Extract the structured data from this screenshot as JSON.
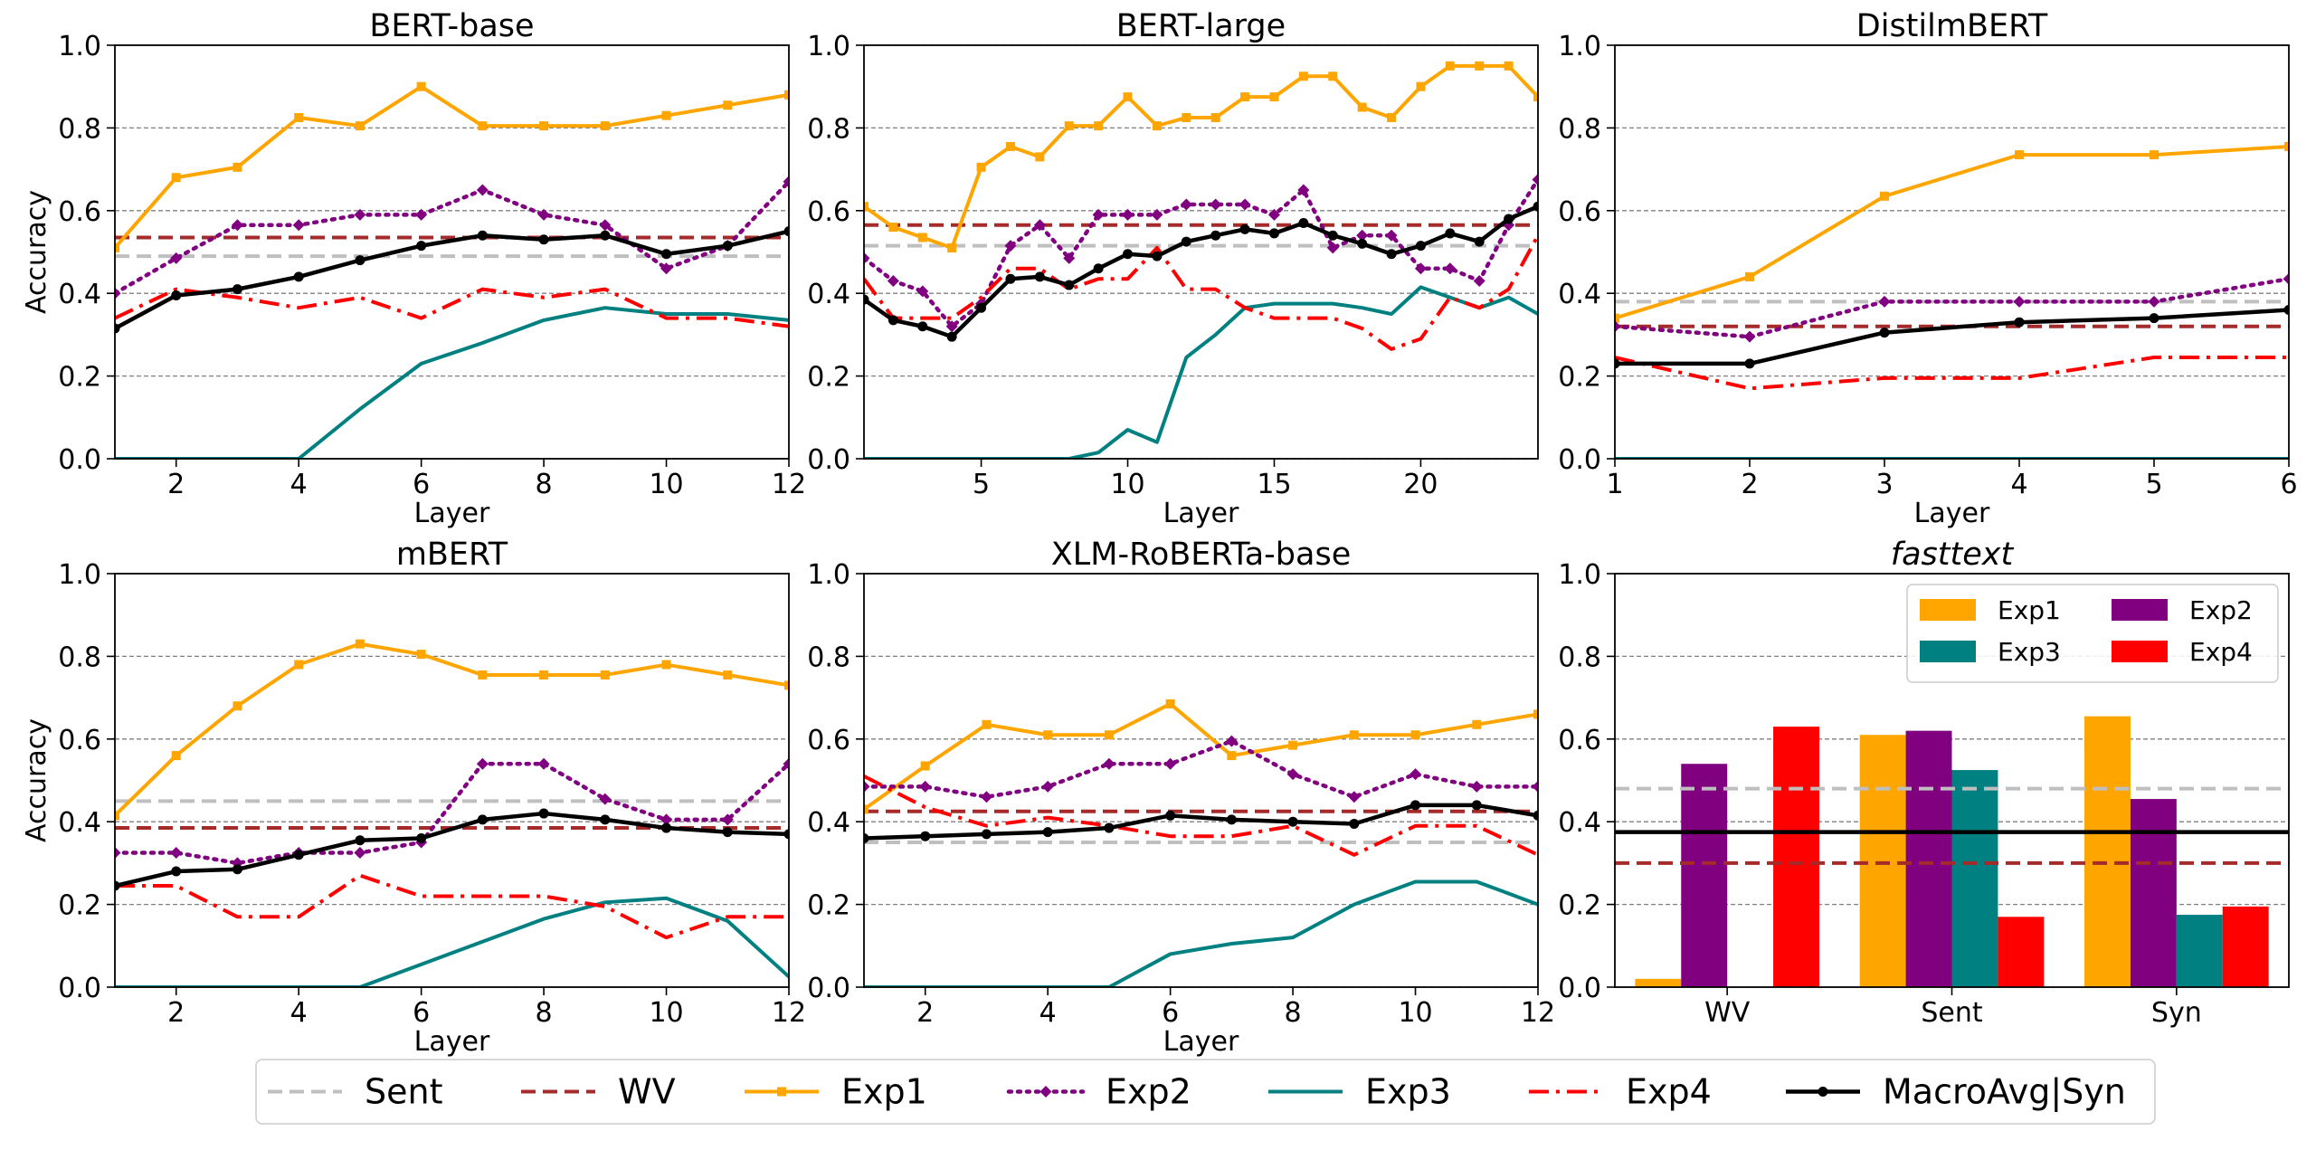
{
  "colors": {
    "Sent": "#bfbfbf",
    "WV": "#a52a2a",
    "Exp1": "#ffa500",
    "Exp2": "#800080",
    "Exp3": "#008080",
    "Exp4": "#ff0000",
    "MacroAvg|Syn": "#000000"
  },
  "axis_labels": {
    "x": "Layer",
    "y": "Accuracy"
  },
  "legend": {
    "entries": [
      {
        "key": "Sent",
        "label": "Sent"
      },
      {
        "key": "WV",
        "label": "WV"
      },
      {
        "key": "Exp1",
        "label": "Exp1"
      },
      {
        "key": "Exp2",
        "label": "Exp2"
      },
      {
        "key": "Exp3",
        "label": "Exp3"
      },
      {
        "key": "Exp4",
        "label": "Exp4"
      },
      {
        "key": "MacroAvg|Syn",
        "label": "MacroAvg|Syn"
      }
    ]
  },
  "chart_data": [
    {
      "type": "line",
      "title": "BERT-base",
      "xlabel": "Layer",
      "ylabel": "Accuracy",
      "xlim": [
        1,
        12
      ],
      "ylim": [
        0,
        1
      ],
      "xticks": [
        2,
        4,
        6,
        8,
        10,
        12
      ],
      "yticks": [
        0.0,
        0.2,
        0.4,
        0.6,
        0.8,
        1.0
      ],
      "ytick_labels": [
        "0.0",
        "0.2",
        "0.4",
        "0.6",
        "0.8",
        "1.0"
      ],
      "hlines": {
        "Sent": 0.49,
        "WV": 0.535
      },
      "x": [
        1,
        2,
        3,
        4,
        5,
        6,
        7,
        8,
        9,
        10,
        11,
        12
      ],
      "series": [
        {
          "name": "Exp1",
          "values": [
            0.51,
            0.68,
            0.705,
            0.825,
            0.805,
            0.9,
            0.805,
            0.805,
            0.805,
            0.83,
            0.855,
            0.88
          ]
        },
        {
          "name": "Exp2",
          "values": [
            0.4,
            0.485,
            0.565,
            0.565,
            0.59,
            0.59,
            0.65,
            0.59,
            0.565,
            0.46,
            0.515,
            0.67
          ]
        },
        {
          "name": "Exp3",
          "values": [
            0.0,
            0.0,
            0.0,
            0.0,
            0.12,
            0.23,
            0.28,
            0.335,
            0.365,
            0.35,
            0.35,
            0.335
          ]
        },
        {
          "name": "Exp4",
          "values": [
            0.34,
            0.41,
            0.39,
            0.365,
            0.39,
            0.34,
            0.41,
            0.39,
            0.41,
            0.34,
            0.34,
            0.32
          ]
        },
        {
          "name": "MacroAvg|Syn",
          "values": [
            0.315,
            0.395,
            0.41,
            0.44,
            0.48,
            0.515,
            0.54,
            0.53,
            0.54,
            0.495,
            0.515,
            0.55
          ]
        }
      ]
    },
    {
      "type": "line",
      "title": "BERT-large",
      "xlabel": "Layer",
      "ylabel": "",
      "xlim": [
        1,
        24
      ],
      "ylim": [
        0,
        1
      ],
      "xticks": [
        5,
        10,
        15,
        20
      ],
      "yticks": [
        0.0,
        0.2,
        0.4,
        0.6,
        0.8,
        1.0
      ],
      "ytick_labels": [
        "0.0",
        "0.2",
        "0.4",
        "0.6",
        "0.8",
        "1.0"
      ],
      "hlines": {
        "Sent": 0.515,
        "WV": 0.565
      },
      "x": [
        1,
        2,
        3,
        4,
        5,
        6,
        7,
        8,
        9,
        10,
        11,
        12,
        13,
        14,
        15,
        16,
        17,
        18,
        19,
        20,
        21,
        22,
        23,
        24
      ],
      "series": [
        {
          "name": "Exp1",
          "values": [
            0.61,
            0.56,
            0.535,
            0.51,
            0.705,
            0.755,
            0.73,
            0.805,
            0.805,
            0.875,
            0.805,
            0.825,
            0.825,
            0.875,
            0.875,
            0.925,
            0.925,
            0.85,
            0.825,
            0.9,
            0.95,
            0.95,
            0.95,
            0.875
          ]
        },
        {
          "name": "Exp2",
          "values": [
            0.485,
            0.43,
            0.405,
            0.32,
            0.375,
            0.515,
            0.565,
            0.485,
            0.59,
            0.59,
            0.59,
            0.615,
            0.615,
            0.615,
            0.59,
            0.65,
            0.51,
            0.54,
            0.54,
            0.46,
            0.46,
            0.43,
            0.565,
            0.675
          ]
        },
        {
          "name": "Exp3",
          "values": [
            0.0,
            0.0,
            0.0,
            0.0,
            0.0,
            0.0,
            0.0,
            0.0,
            0.015,
            0.07,
            0.04,
            0.245,
            0.3,
            0.365,
            0.375,
            0.375,
            0.375,
            0.365,
            0.35,
            0.415,
            0.39,
            0.365,
            0.39,
            0.35
          ]
        },
        {
          "name": "Exp4",
          "values": [
            0.435,
            0.34,
            0.34,
            0.34,
            0.39,
            0.46,
            0.46,
            0.41,
            0.435,
            0.435,
            0.51,
            0.41,
            0.41,
            0.365,
            0.34,
            0.34,
            0.34,
            0.315,
            0.265,
            0.29,
            0.39,
            0.365,
            0.41,
            0.54
          ]
        },
        {
          "name": "MacroAvg|Syn",
          "values": [
            0.385,
            0.335,
            0.32,
            0.295,
            0.365,
            0.435,
            0.44,
            0.42,
            0.46,
            0.495,
            0.49,
            0.525,
            0.54,
            0.555,
            0.545,
            0.57,
            0.54,
            0.52,
            0.495,
            0.515,
            0.545,
            0.525,
            0.58,
            0.61
          ]
        }
      ]
    },
    {
      "type": "line",
      "title": "DistilmBERT",
      "xlabel": "Layer",
      "ylabel": "",
      "xlim": [
        1,
        6
      ],
      "ylim": [
        0,
        1
      ],
      "xticks": [
        1,
        2,
        3,
        4,
        5,
        6
      ],
      "yticks": [
        0.0,
        0.2,
        0.4,
        0.6,
        0.8,
        1.0
      ],
      "ytick_labels": [
        "0.0",
        "0.2",
        "0.4",
        "0.6",
        "0.8",
        "1.0"
      ],
      "hlines": {
        "Sent": 0.38,
        "WV": 0.32
      },
      "x": [
        1,
        2,
        3,
        4,
        5,
        6
      ],
      "series": [
        {
          "name": "Exp1",
          "values": [
            0.34,
            0.44,
            0.635,
            0.735,
            0.735,
            0.755
          ]
        },
        {
          "name": "Exp2",
          "values": [
            0.32,
            0.295,
            0.38,
            0.38,
            0.38,
            0.435
          ]
        },
        {
          "name": "Exp3",
          "values": [
            0.0,
            0.0,
            0.0,
            0.0,
            0.0,
            0.0
          ]
        },
        {
          "name": "Exp4",
          "values": [
            0.245,
            0.17,
            0.195,
            0.195,
            0.245,
            0.245
          ]
        },
        {
          "name": "MacroAvg|Syn",
          "values": [
            0.23,
            0.23,
            0.305,
            0.33,
            0.34,
            0.36
          ]
        }
      ]
    },
    {
      "type": "line",
      "title": "mBERT",
      "xlabel": "Layer",
      "ylabel": "Accuracy",
      "xlim": [
        1,
        12
      ],
      "ylim": [
        0,
        1
      ],
      "xticks": [
        2,
        4,
        6,
        8,
        10,
        12
      ],
      "yticks": [
        0.0,
        0.2,
        0.4,
        0.6,
        0.8,
        1.0
      ],
      "ytick_labels": [
        "0.0",
        "0.2",
        "0.4",
        "0.6",
        "0.8",
        "1.0"
      ],
      "hlines": {
        "Sent": 0.45,
        "WV": 0.385
      },
      "x": [
        1,
        2,
        3,
        4,
        5,
        6,
        7,
        8,
        9,
        10,
        11,
        12
      ],
      "series": [
        {
          "name": "Exp1",
          "values": [
            0.415,
            0.56,
            0.68,
            0.78,
            0.83,
            0.805,
            0.755,
            0.755,
            0.755,
            0.78,
            0.755,
            0.73
          ]
        },
        {
          "name": "Exp2",
          "values": [
            0.325,
            0.325,
            0.3,
            0.325,
            0.325,
            0.35,
            0.54,
            0.54,
            0.455,
            0.405,
            0.405,
            0.54
          ]
        },
        {
          "name": "Exp3",
          "values": [
            0.0,
            0.0,
            0.0,
            0.0,
            0.0,
            0.055,
            0.11,
            0.165,
            0.205,
            0.215,
            0.16,
            0.025
          ]
        },
        {
          "name": "Exp4",
          "values": [
            0.245,
            0.245,
            0.17,
            0.17,
            0.27,
            0.22,
            0.22,
            0.22,
            0.195,
            0.12,
            0.17,
            0.17
          ]
        },
        {
          "name": "MacroAvg|Syn",
          "values": [
            0.245,
            0.28,
            0.285,
            0.32,
            0.355,
            0.36,
            0.405,
            0.42,
            0.405,
            0.385,
            0.375,
            0.37
          ]
        }
      ]
    },
    {
      "type": "line",
      "title": "XLM-RoBERTa-base",
      "xlabel": "Layer",
      "ylabel": "",
      "xlim": [
        1,
        12
      ],
      "ylim": [
        0,
        1
      ],
      "xticks": [
        2,
        4,
        6,
        8,
        10,
        12
      ],
      "yticks": [
        0.0,
        0.2,
        0.4,
        0.6,
        0.8,
        1.0
      ],
      "ytick_labels": [
        "0.0",
        "0.2",
        "0.4",
        "0.6",
        "0.8",
        "1.0"
      ],
      "hlines": {
        "Sent": 0.35,
        "WV": 0.425
      },
      "x": [
        1,
        2,
        3,
        4,
        5,
        6,
        7,
        8,
        9,
        10,
        11,
        12
      ],
      "series": [
        {
          "name": "Exp1",
          "values": [
            0.43,
            0.535,
            0.635,
            0.61,
            0.61,
            0.685,
            0.56,
            0.585,
            0.61,
            0.61,
            0.635,
            0.66
          ]
        },
        {
          "name": "Exp2",
          "values": [
            0.485,
            0.485,
            0.46,
            0.485,
            0.54,
            0.54,
            0.595,
            0.515,
            0.46,
            0.515,
            0.485,
            0.485
          ]
        },
        {
          "name": "Exp3",
          "values": [
            0.0,
            0.0,
            0.0,
            0.0,
            0.0,
            0.08,
            0.105,
            0.12,
            0.2,
            0.255,
            0.255,
            0.2
          ]
        },
        {
          "name": "Exp4",
          "values": [
            0.51,
            0.435,
            0.39,
            0.41,
            0.39,
            0.365,
            0.365,
            0.39,
            0.32,
            0.39,
            0.39,
            0.32
          ]
        },
        {
          "name": "MacroAvg|Syn",
          "values": [
            0.36,
            0.365,
            0.37,
            0.375,
            0.385,
            0.415,
            0.405,
            0.4,
            0.395,
            0.44,
            0.44,
            0.415
          ]
        }
      ]
    },
    {
      "type": "bar",
      "title": "fasttext",
      "xlabel": "",
      "ylabel": "",
      "ylim": [
        0,
        1
      ],
      "yticks": [
        0.0,
        0.2,
        0.4,
        0.6,
        0.8,
        1.0
      ],
      "ytick_labels": [
        "0.0",
        "0.2",
        "0.4",
        "0.6",
        "0.8",
        "1.0"
      ],
      "categories": [
        "WV",
        "Sent",
        "Syn"
      ],
      "hlines": {
        "Sent": 0.48,
        "WV": 0.3,
        "MacroAvg|Syn": 0.375
      },
      "legend_labels": [
        "Exp1",
        "Exp2",
        "Exp3",
        "Exp4"
      ],
      "legend_position": "top-right",
      "series": [
        {
          "name": "Exp1",
          "values": [
            0.02,
            0.61,
            0.655
          ]
        },
        {
          "name": "Exp2",
          "values": [
            0.54,
            0.62,
            0.455
          ]
        },
        {
          "name": "Exp3",
          "values": [
            0.0,
            0.525,
            0.175
          ]
        },
        {
          "name": "Exp4",
          "values": [
            0.63,
            0.17,
            0.195
          ]
        }
      ]
    }
  ]
}
